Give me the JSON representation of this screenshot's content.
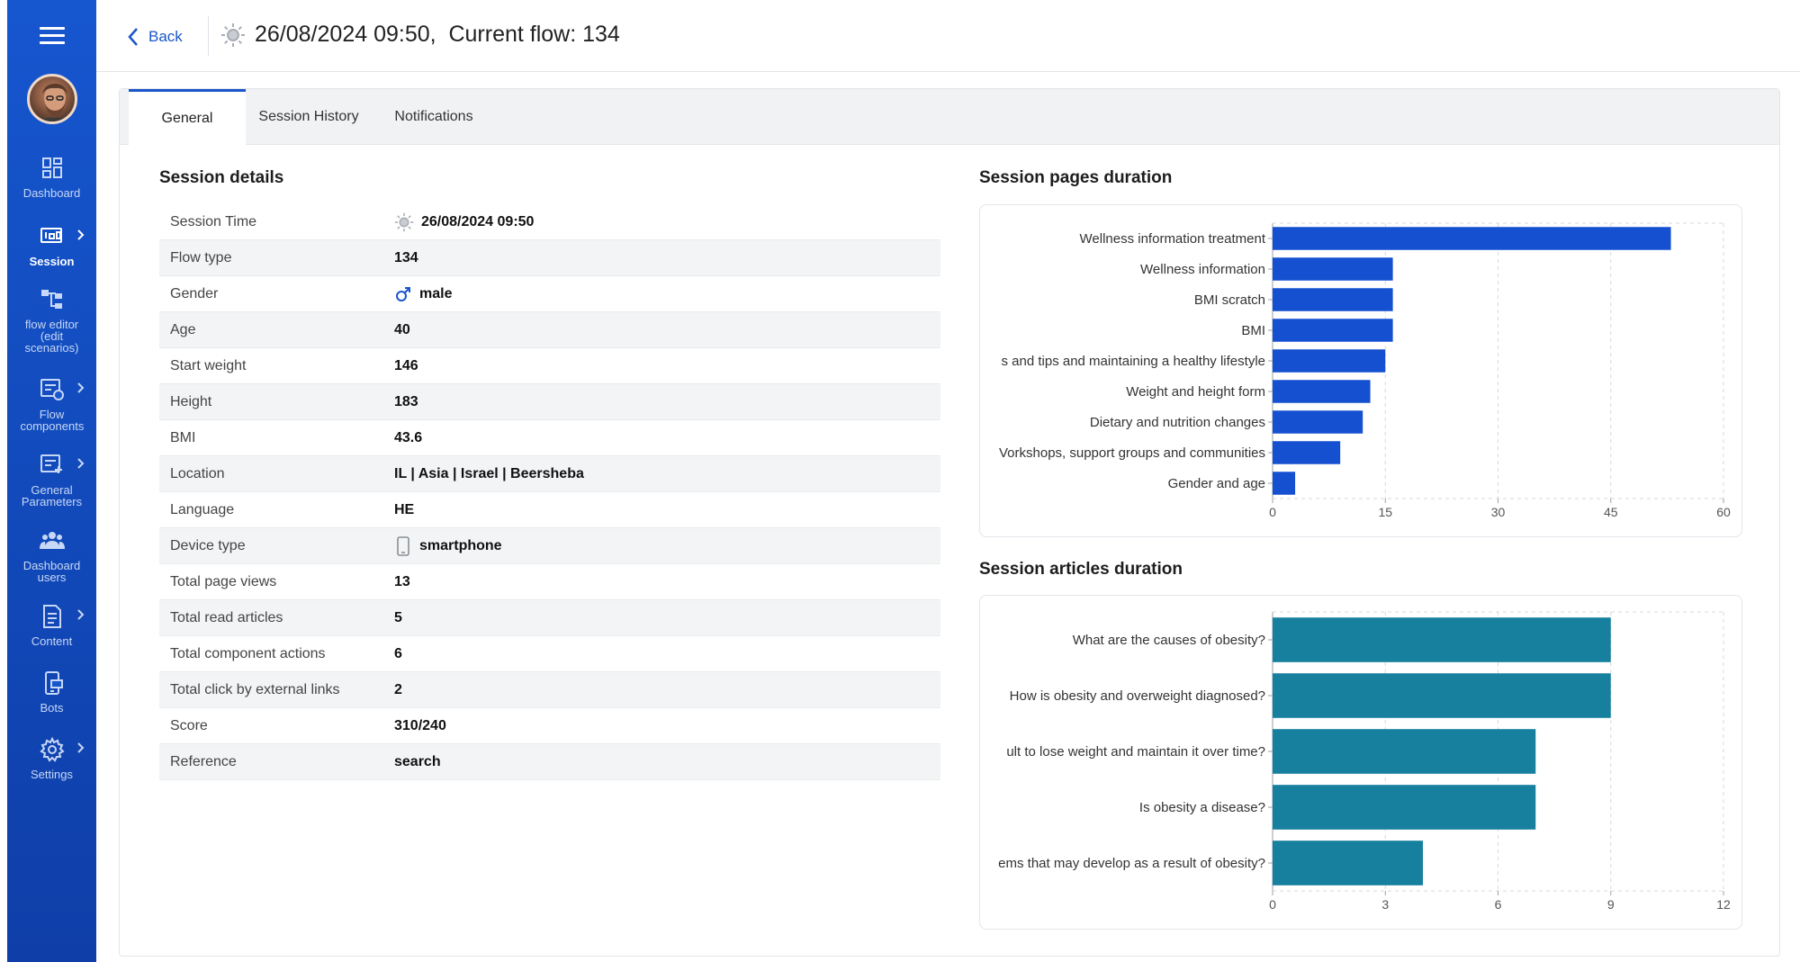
{
  "header": {
    "back_label": "Back",
    "title": "26/08/2024 09:50,  Current flow: 134"
  },
  "sidebar": {
    "items": [
      {
        "label": "Dashboard",
        "icon": "dashboard-icon"
      },
      {
        "label": "Session",
        "icon": "session-icon"
      },
      {
        "label": "flow editor (edit scenarios)",
        "icon": "flow-editor-icon"
      },
      {
        "label": "Flow components",
        "icon": "flow-components-icon"
      },
      {
        "label": "General Parameters",
        "icon": "general-parameters-icon"
      },
      {
        "label": "Dashboard users",
        "icon": "users-icon"
      },
      {
        "label": "Content",
        "icon": "content-icon"
      },
      {
        "label": "Bots",
        "icon": "bots-icon"
      },
      {
        "label": "Settings",
        "icon": "gear-icon"
      }
    ]
  },
  "tabs": [
    {
      "label": "General"
    },
    {
      "label": "Session History"
    },
    {
      "label": "Notifications"
    }
  ],
  "session_details": {
    "title": "Session details",
    "rows": [
      {
        "label": "Session Time",
        "value": "26/08/2024 09:50"
      },
      {
        "label": "Flow type",
        "value": "134"
      },
      {
        "label": "Gender",
        "value": "male"
      },
      {
        "label": "Age",
        "value": "40"
      },
      {
        "label": "Start weight",
        "value": "146"
      },
      {
        "label": "Height",
        "value": "183"
      },
      {
        "label": "BMI",
        "value": "43.6"
      },
      {
        "label": "Location",
        "value": "IL | Asia | Israel | Beersheba"
      },
      {
        "label": "Language",
        "value": "HE"
      },
      {
        "label": "Device type",
        "value": "smartphone"
      },
      {
        "label": "Total page views",
        "value": "13"
      },
      {
        "label": "Total read articles",
        "value": "5"
      },
      {
        "label": "Total component actions",
        "value": "6"
      },
      {
        "label": "Total click by external links",
        "value": "2"
      },
      {
        "label": "Score",
        "value": "310/240"
      },
      {
        "label": "Reference",
        "value": "search"
      }
    ]
  },
  "colors": {
    "accent": "#1a56c9",
    "sidebar": "#1656cf",
    "pages_bar": "#1450d0",
    "articles_bar": "#17809e"
  },
  "chart_data": [
    {
      "type": "bar",
      "orientation": "horizontal",
      "title": "Session pages duration",
      "categories": [
        "Wellness information treatment",
        "Wellness information",
        "BMI scratch",
        "BMI",
        "s and tips and maintaining a healthy lifestyle",
        "Weight and height form",
        "Dietary and nutrition changes",
        "Vorkshops, support groups and communities",
        "Gender and age"
      ],
      "values": [
        53,
        16,
        16,
        16,
        15,
        13,
        12,
        9,
        3
      ],
      "xlim": [
        0,
        60
      ],
      "ticks": [
        "0",
        "15",
        "30",
        "45",
        "60"
      ],
      "grid": true
    },
    {
      "type": "bar",
      "orientation": "horizontal",
      "title": "Session articles duration",
      "categories": [
        "What are the causes of obesity?",
        "How is obesity and overweight diagnosed?",
        "ult to lose weight and maintain it over time?",
        "Is obesity a disease?",
        "ems that may develop as a result of obesity?"
      ],
      "values": [
        9,
        9,
        7,
        7,
        4
      ],
      "xlim": [
        0,
        12
      ],
      "ticks": [
        "0",
        "3",
        "6",
        "9",
        "12"
      ],
      "grid": true
    }
  ]
}
